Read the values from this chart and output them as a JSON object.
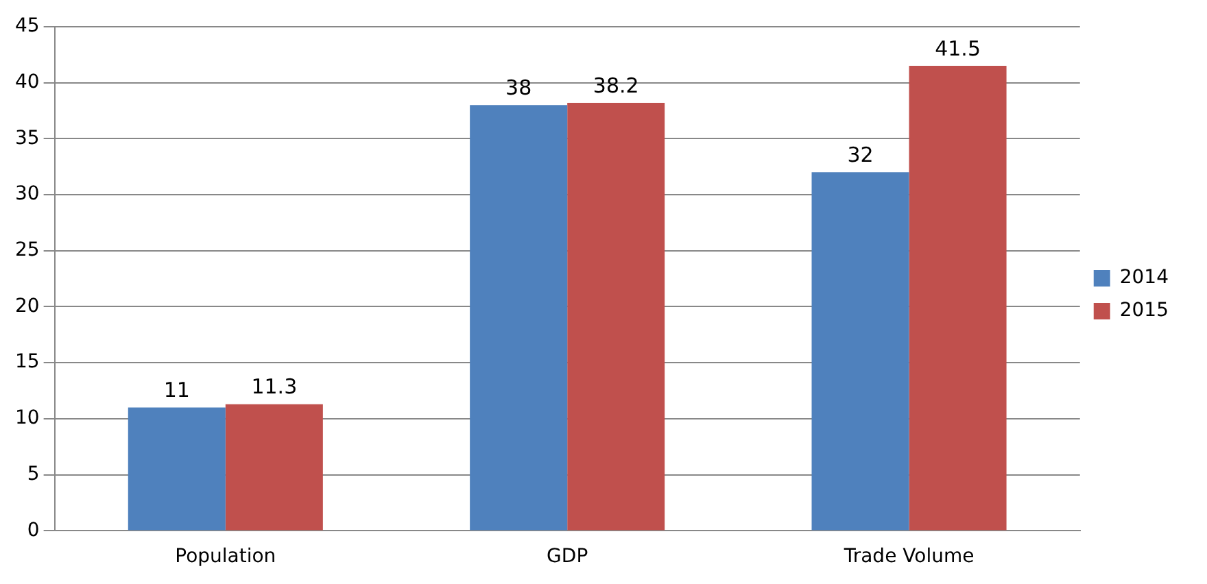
{
  "chart_data": {
    "type": "bar",
    "categories": [
      "Population",
      "GDP",
      "Trade Volume"
    ],
    "series": [
      {
        "name": "2014",
        "color": "#4f81bd",
        "values": [
          11,
          38,
          32
        ]
      },
      {
        "name": "2015",
        "color": "#c0504d",
        "values": [
          11.3,
          38.2,
          41.5
        ]
      }
    ],
    "ylim": [
      0,
      45
    ],
    "yticks": [
      0,
      5,
      10,
      15,
      20,
      25,
      30,
      35,
      40,
      45
    ],
    "grid": "y",
    "legend": "right",
    "data_labels": true
  }
}
